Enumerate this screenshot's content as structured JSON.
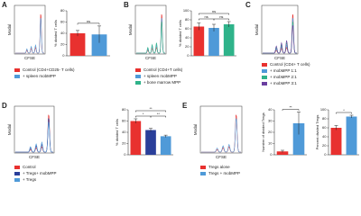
{
  "panels": [
    {
      "label": "A",
      "xlabel": "CFSE",
      "ylabel": "Modal",
      "legend": [
        {
          "name": "Control (CD4+CD25- T cells)",
          "color": "#e8312f"
        },
        {
          "name": "+ spleen mobMPP",
          "color": "#4f9ad8"
        }
      ]
    },
    {
      "label": "B",
      "xlabel": "CFSE",
      "ylabel": "Modal",
      "legend": [
        {
          "name": "Control (CD4+T cells)",
          "color": "#e8312f"
        },
        {
          "name": "+ spleen mobMPP",
          "color": "#4f9ad8"
        },
        {
          "name": "+ bone marrow MPP",
          "color": "#2fb38a"
        }
      ]
    },
    {
      "label": "C",
      "xlabel": "CFSE",
      "ylabel": "Modal",
      "legend": [
        {
          "name": "Control (CD4+ T cells)",
          "color": "#e8312f"
        },
        {
          "name": "+ mobMPP 1:1",
          "color": "#4f9ad8"
        },
        {
          "name": "+ mobMPP 2:1",
          "color": "#2fb38a"
        },
        {
          "name": "+ mobMPP 3:1",
          "color": "#6a3fa0"
        }
      ]
    },
    {
      "label": "D",
      "xlabel": "CFSE",
      "ylabel": "Modal",
      "legend": [
        {
          "name": "Control",
          "color": "#e8312f"
        },
        {
          "name": "+ Tregs+ mobMPP",
          "color": "#2a3f9a"
        },
        {
          "name": "+ Tregs",
          "color": "#4f9ad8"
        }
      ]
    },
    {
      "label": "E",
      "xlabel": "CFSE",
      "ylabel": "Modal",
      "legend": [
        {
          "name": "Tregs alone",
          "color": "#e8312f"
        },
        {
          "name": "Tregs + mobMPP",
          "color": "#4f9ad8"
        }
      ]
    }
  ],
  "chart_data": [
    {
      "type": "bar",
      "ylabel": "% divided T cells",
      "values": [
        40,
        38
      ],
      "errors": [
        5,
        15
      ],
      "colors": [
        "#e8312f",
        "#4f9ad8"
      ],
      "ylim": [
        0,
        80
      ],
      "yticks": [
        0,
        20,
        40,
        60,
        80
      ],
      "annotations": [
        "ns"
      ]
    },
    {
      "type": "bar",
      "ylabel": "% divided T cells",
      "values": [
        65,
        62,
        70
      ],
      "errors": [
        8,
        8,
        6
      ],
      "colors": [
        "#e8312f",
        "#4f9ad8",
        "#2fb38a"
      ],
      "ylim": [
        0,
        100
      ],
      "yticks": [
        0,
        20,
        40,
        60,
        80,
        100
      ],
      "annotations": [
        "ns",
        "ns",
        "ns"
      ]
    },
    {
      "type": "bar",
      "ylabel": "% divided T cells",
      "values": [
        60,
        44,
        33
      ],
      "errors": [
        4,
        3,
        2
      ],
      "colors": [
        "#e8312f",
        "#2a3f9a",
        "#4f9ad8"
      ],
      "ylim": [
        0,
        80
      ],
      "yticks": [
        0,
        20,
        40,
        60,
        80
      ],
      "annotations": [
        "*",
        "**",
        "**"
      ]
    },
    {
      "type": "bar",
      "ylabel": "Number of divided Tregs",
      "values": [
        3,
        28
      ],
      "errors": [
        1,
        10
      ],
      "colors": [
        "#e8312f",
        "#4f9ad8"
      ],
      "ylim": [
        0,
        40
      ],
      "yticks": [
        0,
        10,
        20,
        30,
        40
      ],
      "annotations": [
        "**"
      ]
    },
    {
      "type": "bar",
      "ylabel": "Percent divided Tregs",
      "values": [
        60,
        85
      ],
      "errors": [
        5,
        3
      ],
      "colors": [
        "#e8312f",
        "#4f9ad8"
      ],
      "ylim": [
        0,
        100
      ],
      "yticks": [
        0,
        20,
        40,
        60,
        80,
        100
      ],
      "annotations": [
        "*"
      ]
    }
  ]
}
